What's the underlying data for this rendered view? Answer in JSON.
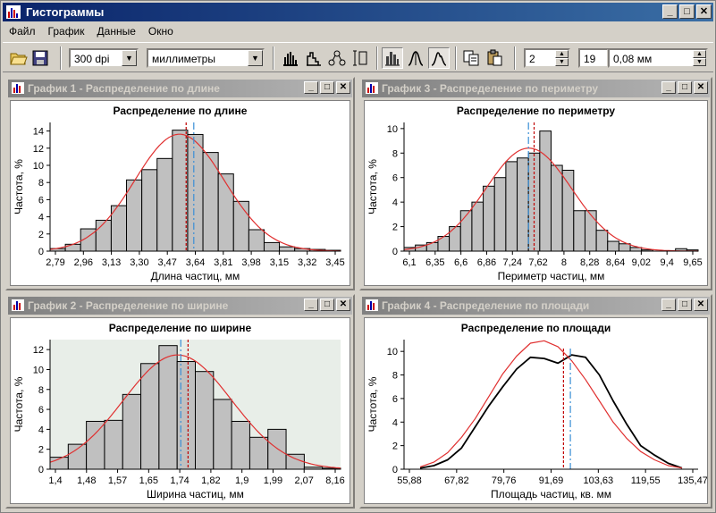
{
  "app": {
    "title": "Гистограммы"
  },
  "menu": [
    "Файл",
    "График",
    "Данные",
    "Окно"
  ],
  "toolbar": {
    "resolution": "300 dpi",
    "units": "миллиметры",
    "spin_value": "2",
    "bins_value": "19",
    "width_value": "0,08 мм"
  },
  "windows": {
    "w1": {
      "title": "График 1 - Распределение по длине"
    },
    "w2": {
      "title": "График 2 - Распределение по ширине"
    },
    "w3": {
      "title": "График 3 - Распределение по периметру"
    },
    "w4": {
      "title": "График 4 - Распределение по площади"
    }
  },
  "colors": {
    "bar_fill": "#c0c0c0",
    "normal_curve": "#e03030",
    "mean_line": "#c00000",
    "median_line": "#3a8fd6",
    "kde": "#000000"
  },
  "chart_data": [
    {
      "id": "c1",
      "type": "bar",
      "title": "Распределение по длине",
      "xlabel": "Длина частиц, мм",
      "ylabel": "Частота, %",
      "ylim": [
        0,
        15
      ],
      "yticks": [
        0,
        2,
        4,
        6,
        8,
        10,
        12,
        14
      ],
      "x_ticklabels": [
        "2,79",
        "2,96",
        "3,13",
        "3,30",
        "3,47",
        "3,64",
        "3,81",
        "3,98",
        "3,15",
        "3,32",
        "3,45"
      ],
      "bins": 19,
      "values": [
        0.3,
        0.8,
        2.6,
        3.6,
        5.3,
        8.3,
        9.5,
        10.8,
        14.1,
        13.6,
        11.5,
        9.0,
        5.8,
        2.5,
        1.0,
        0.5,
        0.3,
        0.2,
        0.1
      ],
      "normal_curve": true,
      "mean_line": 8.9,
      "median_line": 9.4,
      "grid": false
    },
    {
      "id": "c2",
      "type": "bar",
      "title": "Распределение по ширине",
      "xlabel": "Ширина частиц, мм",
      "ylabel": "Частота, %",
      "ylim": [
        0,
        13
      ],
      "yticks": [
        0,
        2,
        4,
        6,
        8,
        10,
        12
      ],
      "x_ticklabels": [
        "1,4",
        "1,48",
        "1,57",
        "1,65",
        "1,74",
        "1,82",
        "1,9",
        "1,99",
        "2,07",
        "8,16"
      ],
      "bins": 16,
      "values": [
        1.2,
        2.5,
        4.8,
        4.9,
        7.5,
        10.6,
        12.4,
        10.8,
        9.8,
        7.0,
        4.8,
        3.2,
        4.0,
        1.5,
        0.2,
        0.1
      ],
      "normal_curve": true,
      "mean_line": 7.6,
      "median_line": 7.2,
      "grid": true
    },
    {
      "id": "c3",
      "type": "bar",
      "title": "Распределение по периметру",
      "xlabel": "Периметр частиц, мм",
      "ylabel": "Частота, %",
      "ylim": [
        0,
        10.5
      ],
      "yticks": [
        0,
        2,
        4,
        6,
        8,
        10
      ],
      "x_ticklabels": [
        "6,1",
        "6,35",
        "6,6",
        "6,86",
        "7,24",
        "7,62",
        "8",
        "8,28",
        "8,64",
        "9,02",
        "9,4",
        "9,65"
      ],
      "bins": 26,
      "values": [
        0.3,
        0.5,
        0.7,
        1.2,
        2.0,
        3.3,
        4.0,
        5.3,
        6.0,
        7.3,
        7.6,
        8.0,
        9.8,
        7.0,
        6.6,
        3.3,
        3.3,
        1.7,
        0.8,
        0.6,
        0.3,
        0.1,
        0.0,
        0.0,
        0.2,
        0.1
      ],
      "normal_curve": true,
      "mean_line": 11.5,
      "median_line": 11.0,
      "grid": false
    },
    {
      "id": "c4",
      "type": "line",
      "title": "Распределение по площади",
      "xlabel": "Площадь частиц, кв. мм",
      "ylabel": "Частота, %",
      "ylim": [
        0,
        11
      ],
      "yticks": [
        0,
        2,
        4,
        6,
        8,
        10
      ],
      "x_ticklabels": [
        "55,88",
        "67,82",
        "79,76",
        "91,69",
        "103,63",
        "119,55",
        "135,47"
      ],
      "x": [
        50,
        55,
        60,
        65,
        70,
        75,
        80,
        85,
        90,
        95,
        100,
        105,
        110,
        115,
        120,
        125,
        130,
        135,
        140,
        145
      ],
      "series": [
        {
          "values": [
            0.1,
            0.3,
            0.8,
            1.8,
            3.6,
            5.4,
            7.0,
            8.5,
            9.5,
            9.4,
            9.0,
            9.7,
            9.5,
            8.0,
            5.8,
            3.8,
            2.0,
            1.2,
            0.5,
            0.1
          ]
        },
        {
          "values": [
            0.2,
            0.6,
            1.4,
            2.7,
            4.3,
            6.2,
            8.1,
            9.6,
            10.7,
            10.9,
            10.4,
            9.2,
            7.6,
            5.8,
            4.0,
            2.6,
            1.5,
            0.8,
            0.3,
            0.1
          ]
        }
      ],
      "mean_line": 10.4,
      "median_line": 10.9,
      "grid": false
    }
  ]
}
